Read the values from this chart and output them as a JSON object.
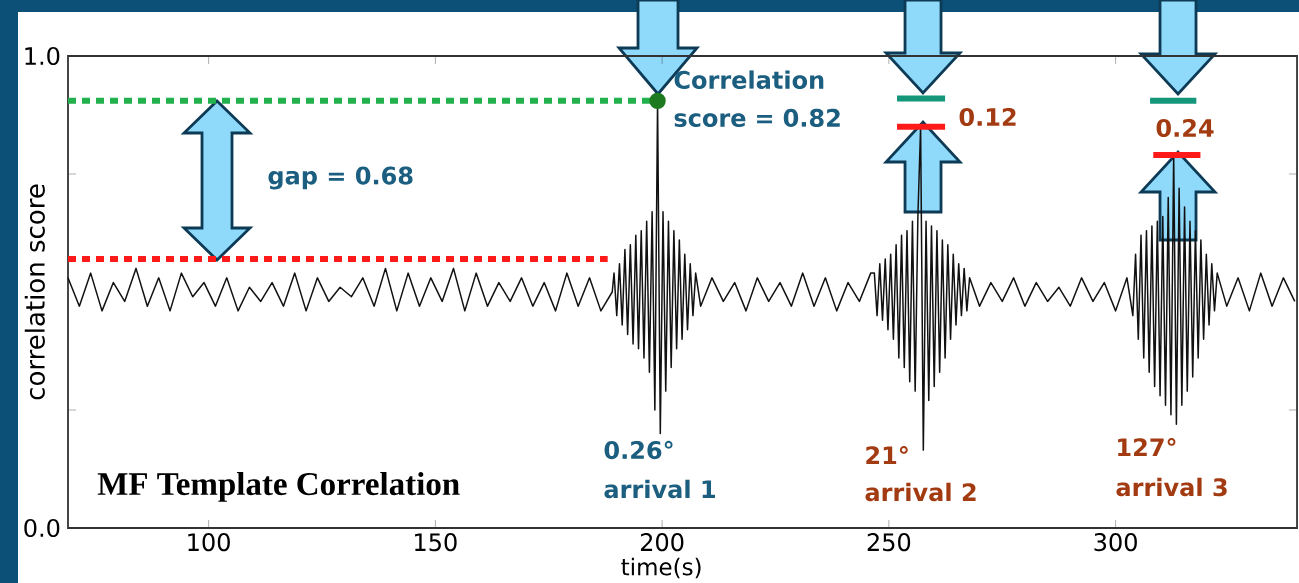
{
  "chart_data": {
    "type": "line",
    "title": "MF Template Correlation",
    "xlabel": "time(s)",
    "ylabel": "correlation score",
    "xlim": [
      69,
      340
    ],
    "ylim": [
      0,
      1
    ],
    "xticks": [
      100,
      150,
      200,
      250,
      300
    ],
    "yticks": [
      {
        "value": 0,
        "label": "0.0"
      },
      {
        "value": 0.25,
        "label": null
      },
      {
        "value": 0.75,
        "label": null
      },
      {
        "value": 1,
        "label": "1.0"
      }
    ],
    "annotations": [
      "Correlation score = 0.82",
      "gap = 0.68",
      "0.12",
      "0.24",
      "0.26°",
      "arrival 1",
      "21°",
      "arrival 2",
      "127°",
      "arrival 3"
    ],
    "series": [
      {
        "color": "#111111",
        "x": [
          69,
          71.5,
          74,
          76.5,
          79,
          81.5,
          84,
          86.5,
          89,
          91.5,
          94,
          96.5,
          99,
          101.5,
          104,
          106.5,
          109,
          111.5,
          114,
          116.5,
          119,
          121.5,
          124,
          126.5,
          129,
          131.5,
          134,
          136.5,
          139,
          141.5,
          144,
          146.5,
          149,
          151.5,
          154,
          156.5,
          159,
          161.5,
          164,
          166.5,
          169,
          171.5,
          174,
          176.5,
          179,
          181.5,
          184,
          186.5,
          189,
          189.4,
          190.0,
          190.6,
          191.2,
          191.8,
          192.4,
          193.0,
          193.6,
          194.2,
          194.8,
          195.4,
          196.0,
          196.6,
          197.2,
          197.8,
          198.4,
          199.0,
          199.6,
          200.2,
          200.8,
          201.4,
          202.0,
          202.6,
          203.2,
          203.8,
          204.4,
          205.0,
          205.6,
          206.2,
          206.8,
          207.4,
          208.5,
          211,
          213.5,
          216,
          218.5,
          221,
          223.5,
          226,
          228.5,
          231,
          233.5,
          236,
          238.5,
          241,
          243.5,
          246,
          246.8,
          247.4,
          248.0,
          248.6,
          249.2,
          249.8,
          250.4,
          251.0,
          251.6,
          252.2,
          252.8,
          253.4,
          254.0,
          254.6,
          255.2,
          255.8,
          256.4,
          257.0,
          257.6,
          258.2,
          258.8,
          259.4,
          260.0,
          260.6,
          261.2,
          261.8,
          262.4,
          263.0,
          263.6,
          264.2,
          264.8,
          265.4,
          266.0,
          266.6,
          267.2,
          267.8,
          270,
          272.5,
          275,
          277.5,
          280,
          282.5,
          285,
          287.5,
          290,
          292.5,
          295,
          297.5,
          300,
          302.5,
          303.8,
          304.4,
          305.0,
          305.6,
          306.2,
          306.8,
          307.4,
          308.0,
          308.6,
          309.2,
          309.8,
          310.4,
          311.0,
          311.6,
          312.2,
          312.8,
          313.4,
          314.0,
          314.6,
          315.2,
          315.8,
          316.4,
          317.0,
          317.6,
          318.2,
          318.8,
          319.4,
          320.0,
          320.6,
          321.2,
          321.8,
          322.4,
          324.5,
          327,
          329.5,
          332,
          334.5,
          337,
          339.5
        ],
        "values": [
          0.53,
          0.47,
          0.54,
          0.46,
          0.52,
          0.48,
          0.55,
          0.47,
          0.53,
          0.46,
          0.54,
          0.49,
          0.52,
          0.47,
          0.53,
          0.46,
          0.51,
          0.48,
          0.52,
          0.47,
          0.54,
          0.46,
          0.53,
          0.48,
          0.51,
          0.49,
          0.53,
          0.47,
          0.55,
          0.46,
          0.54,
          0.47,
          0.53,
          0.48,
          0.55,
          0.46,
          0.54,
          0.47,
          0.52,
          0.48,
          0.53,
          0.47,
          0.52,
          0.46,
          0.54,
          0.47,
          0.53,
          0.46,
          0.5,
          0.54,
          0.45,
          0.56,
          0.43,
          0.59,
          0.41,
          0.6,
          0.39,
          0.62,
          0.38,
          0.63,
          0.36,
          0.65,
          0.33,
          0.67,
          0.25,
          0.905,
          0.2,
          0.67,
          0.29,
          0.65,
          0.34,
          0.63,
          0.38,
          0.61,
          0.4,
          0.58,
          0.42,
          0.56,
          0.45,
          0.54,
          0.47,
          0.53,
          0.48,
          0.52,
          0.46,
          0.53,
          0.48,
          0.52,
          0.47,
          0.54,
          0.47,
          0.53,
          0.46,
          0.52,
          0.48,
          0.54,
          0.54,
          0.45,
          0.56,
          0.44,
          0.57,
          0.42,
          0.58,
          0.4,
          0.6,
          0.36,
          0.62,
          0.34,
          0.63,
          0.31,
          0.65,
          0.29,
          0.66,
          0.85,
          0.165,
          0.65,
          0.27,
          0.64,
          0.3,
          0.63,
          0.33,
          0.61,
          0.36,
          0.6,
          0.4,
          0.58,
          0.43,
          0.56,
          0.45,
          0.55,
          0.46,
          0.53,
          0.47,
          0.52,
          0.48,
          0.53,
          0.47,
          0.52,
          0.48,
          0.51,
          0.47,
          0.53,
          0.48,
          0.52,
          0.46,
          0.53,
          0.45,
          0.58,
          0.4,
          0.62,
          0.36,
          0.63,
          0.33,
          0.64,
          0.3,
          0.65,
          0.28,
          0.66,
          0.26,
          0.7,
          0.24,
          0.79,
          0.22,
          0.72,
          0.26,
          0.68,
          0.29,
          0.65,
          0.32,
          0.63,
          0.36,
          0.61,
          0.4,
          0.58,
          0.43,
          0.56,
          0.46,
          0.54,
          0.47,
          0.53,
          0.46,
          0.54,
          0.47,
          0.53,
          0.48
        ]
      },
      {
        "color": "#22b14c",
        "line_style": "dotted",
        "x": [
          69,
          199
        ],
        "values": [
          0.905,
          0.905
        ]
      },
      {
        "color": "#ff1a1a",
        "line_style": "dotted",
        "x": [
          69,
          188
        ],
        "values": [
          0.57,
          0.57
        ]
      },
      {
        "color": "#14967a",
        "x": [
          251.8,
          262.4
        ],
        "values": [
          0.91,
          0.91
        ]
      },
      {
        "color": "#14967a",
        "x": [
          307.6,
          317.8
        ],
        "values": [
          0.905,
          0.905
        ]
      },
      {
        "color": "#ff1a1a",
        "x": [
          251.8,
          262.4
        ],
        "values": [
          0.85,
          0.85
        ]
      },
      {
        "color": "#ff1a1a",
        "x": [
          308.3,
          318.7
        ],
        "values": [
          0.79,
          0.79
        ]
      },
      {
        "type": "scatter",
        "color": "#1e7a1e",
        "marker": "circle",
        "x": [
          199
        ],
        "values": [
          0.905
        ]
      }
    ]
  }
}
